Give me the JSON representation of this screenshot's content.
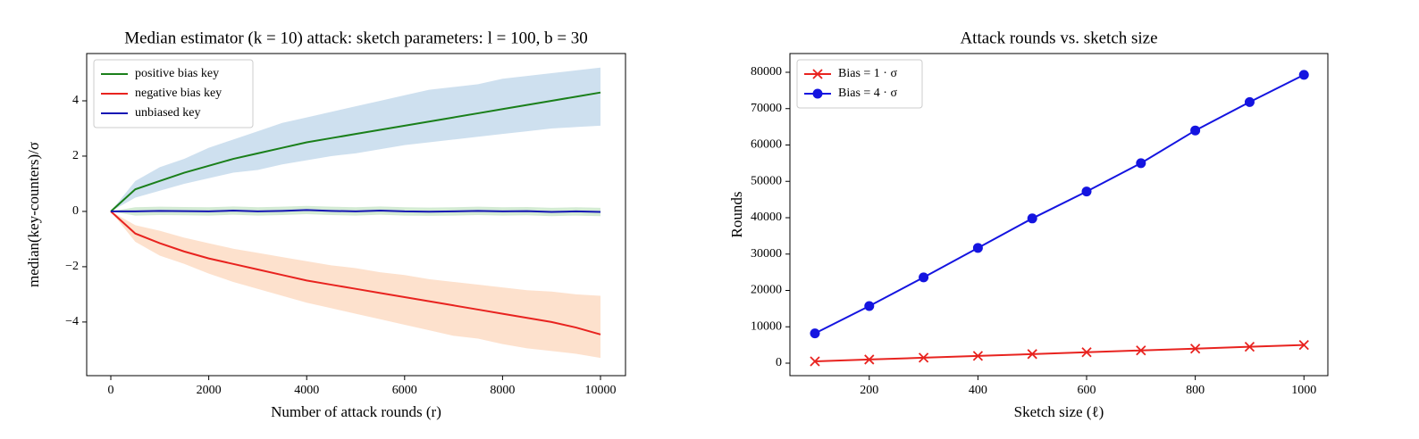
{
  "chart_data": [
    {
      "type": "line",
      "title": "Median estimator (k = 10) attack: sketch parameters: l = 100, b = 30",
      "x_label": "Number of attack rounds (r)",
      "y_label": "median(key-counters)/σ",
      "legend": "upper left",
      "x": [
        0,
        500,
        1000,
        1500,
        2000,
        2500,
        3000,
        3500,
        4000,
        4500,
        5000,
        5500,
        6000,
        6500,
        7000,
        7500,
        8000,
        8500,
        9000,
        9500,
        10000
      ],
      "xlim": [
        -493,
        10511
      ],
      "xticks": [
        0,
        2000,
        4000,
        6000,
        8000,
        10000
      ],
      "ylim": [
        -5.94,
        5.71
      ],
      "yticks": [
        {
          "value": -4,
          "label": "−4"
        },
        {
          "value": -2,
          "label": "−2"
        },
        0,
        2,
        4
      ],
      "series": [
        {
          "name": "positive bias key",
          "color": "#1a7f1a",
          "band_color": "#c6dbec",
          "values": [
            0,
            0.8,
            1.1,
            1.4,
            1.65,
            1.9,
            2.1,
            2.3,
            2.5,
            2.65,
            2.8,
            2.95,
            3.1,
            3.25,
            3.4,
            3.55,
            3.7,
            3.85,
            4.0,
            4.15,
            4.3
          ],
          "upper": [
            0,
            1.1,
            1.6,
            1.9,
            2.3,
            2.6,
            2.9,
            3.2,
            3.4,
            3.6,
            3.8,
            4.0,
            4.2,
            4.4,
            4.5,
            4.6,
            4.8,
            4.9,
            5.0,
            5.1,
            5.2
          ],
          "lower": [
            0,
            0.5,
            0.75,
            1.0,
            1.2,
            1.4,
            1.5,
            1.7,
            1.85,
            2.0,
            2.1,
            2.25,
            2.4,
            2.5,
            2.6,
            2.7,
            2.8,
            2.9,
            3.0,
            3.05,
            3.1
          ]
        },
        {
          "name": "negative bias key",
          "color": "#e8231f",
          "band_color": "#fddcc4",
          "values": [
            0,
            -0.8,
            -1.15,
            -1.45,
            -1.7,
            -1.9,
            -2.1,
            -2.3,
            -2.5,
            -2.65,
            -2.8,
            -2.95,
            -3.1,
            -3.25,
            -3.4,
            -3.55,
            -3.7,
            -3.85,
            -4.0,
            -4.2,
            -4.45
          ],
          "upper": [
            0,
            -0.5,
            -0.7,
            -0.95,
            -1.15,
            -1.35,
            -1.5,
            -1.65,
            -1.8,
            -1.95,
            -2.05,
            -2.2,
            -2.3,
            -2.45,
            -2.55,
            -2.65,
            -2.75,
            -2.85,
            -2.9,
            -3.0,
            -3.05
          ],
          "lower": [
            0,
            -1.1,
            -1.6,
            -1.9,
            -2.25,
            -2.55,
            -2.8,
            -3.05,
            -3.3,
            -3.5,
            -3.7,
            -3.9,
            -4.1,
            -4.3,
            -4.5,
            -4.6,
            -4.8,
            -4.95,
            -5.05,
            -5.15,
            -5.3
          ]
        },
        {
          "name": "unbiased key",
          "color": "#1414b4",
          "band_color": "#cde8cd",
          "values": [
            0,
            0.0,
            0.02,
            0.01,
            0.0,
            0.03,
            0.0,
            0.02,
            0.05,
            0.02,
            0.0,
            0.03,
            0.0,
            -0.01,
            0.0,
            0.02,
            0.0,
            0.01,
            -0.02,
            0.0,
            -0.02
          ],
          "upper": [
            0,
            0.15,
            0.17,
            0.16,
            0.15,
            0.18,
            0.15,
            0.17,
            0.2,
            0.17,
            0.15,
            0.18,
            0.15,
            0.14,
            0.15,
            0.17,
            0.15,
            0.16,
            0.13,
            0.15,
            0.13
          ],
          "lower": [
            0,
            -0.15,
            -0.13,
            -0.14,
            -0.15,
            -0.12,
            -0.15,
            -0.13,
            -0.1,
            -0.13,
            -0.15,
            -0.12,
            -0.15,
            -0.16,
            -0.15,
            -0.13,
            -0.15,
            -0.14,
            -0.17,
            -0.15,
            -0.17
          ]
        }
      ]
    },
    {
      "type": "line",
      "title": "Attack rounds vs. sketch size",
      "x_label": "Sketch size (ℓ)",
      "y_label": "Rounds",
      "legend": "upper left",
      "x": [
        100,
        200,
        300,
        400,
        500,
        600,
        700,
        800,
        900,
        1000
      ],
      "xlim": [
        54,
        1044
      ],
      "xticks": [
        200,
        400,
        600,
        800,
        1000
      ],
      "ylim": [
        -3435,
        85150
      ],
      "yticks": [
        0,
        10000,
        20000,
        30000,
        40000,
        50000,
        60000,
        70000,
        80000
      ],
      "series": [
        {
          "name": "Bias = 1 · σ",
          "color": "#e8231f",
          "marker": "x",
          "values": [
            500,
            1000,
            1500,
            2000,
            2500,
            3000,
            3500,
            4000,
            4500,
            5000
          ]
        },
        {
          "name": "Bias = 4 · σ",
          "color": "#1414e0",
          "marker": "o",
          "values": [
            8200,
            15700,
            23600,
            31700,
            39800,
            47200,
            55000,
            64000,
            71800,
            79300
          ]
        }
      ]
    }
  ]
}
